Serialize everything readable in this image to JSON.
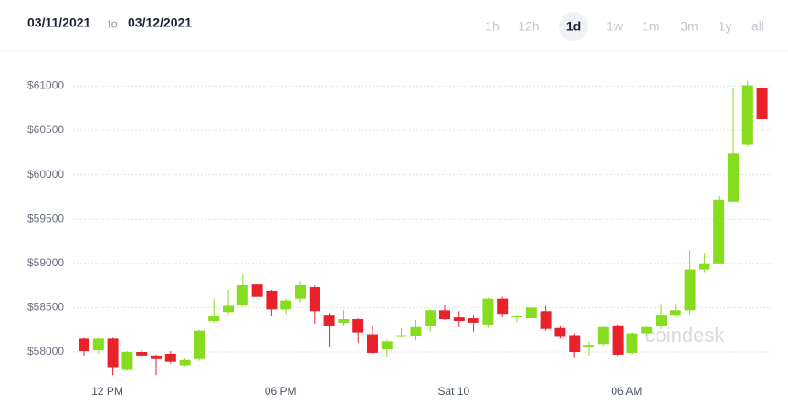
{
  "header": {
    "from": "03/11/2021",
    "separator": "to",
    "to": "03/12/2021"
  },
  "ranges": [
    "1h",
    "12h",
    "1d",
    "1w",
    "1m",
    "3m",
    "1y",
    "all"
  ],
  "selected_range": 2,
  "chart_data": {
    "type": "candlestick",
    "watermark": "coindesk",
    "categories": [
      null,
      null,
      "12 PM",
      null,
      null,
      null,
      null,
      null,
      null,
      null,
      null,
      null,
      null,
      null,
      "06 PM",
      null,
      null,
      null,
      null,
      null,
      null,
      null,
      null,
      null,
      null,
      null,
      "Sat 10",
      null,
      null,
      null,
      null,
      null,
      null,
      null,
      null,
      null,
      null,
      null,
      "06 AM",
      null,
      null,
      null,
      null,
      null,
      null,
      null,
      null,
      null
    ],
    "open": [
      58150,
      58020,
      58150,
      57800,
      58000,
      57960,
      57980,
      57850,
      57920,
      58350,
      58450,
      58530,
      58770,
      58690,
      58480,
      58600,
      58730,
      58420,
      58330,
      58370,
      58200,
      58030,
      58170,
      58180,
      58290,
      58470,
      58390,
      58380,
      58310,
      58600,
      58390,
      58380,
      58460,
      58270,
      58190,
      58050,
      58090,
      58300,
      57990,
      58210,
      58290,
      58420,
      58470,
      58930,
      59000,
      59700,
      60340,
      60980
    ],
    "high": [
      58160,
      58160,
      58160,
      58010,
      58030,
      57970,
      58010,
      57930,
      58250,
      58600,
      58700,
      58880,
      58780,
      58700,
      58600,
      58800,
      58750,
      58440,
      58470,
      58380,
      58290,
      58130,
      58270,
      58360,
      58480,
      58530,
      58460,
      58420,
      58610,
      58620,
      58420,
      58520,
      58520,
      58290,
      58210,
      58120,
      58300,
      58310,
      58220,
      58300,
      58540,
      58540,
      59150,
      59120,
      59760,
      60980,
      61060,
      61000
    ],
    "low": [
      57960,
      57980,
      57740,
      57790,
      57930,
      57740,
      57870,
      57840,
      57900,
      58330,
      58420,
      58510,
      58440,
      58400,
      58430,
      58560,
      58320,
      58060,
      58290,
      58100,
      57980,
      57950,
      58160,
      58130,
      58230,
      58360,
      58280,
      58230,
      58270,
      58390,
      58330,
      58350,
      58240,
      58150,
      57930,
      57960,
      58070,
      57960,
      57980,
      58170,
      58260,
      58400,
      58420,
      58900,
      58990,
      59690,
      60320,
      60480
    ],
    "close": [
      58010,
      58150,
      57820,
      58000,
      57960,
      57920,
      57890,
      57910,
      58240,
      58410,
      58520,
      58760,
      58620,
      58480,
      58580,
      58760,
      58460,
      58290,
      58370,
      58220,
      57990,
      58120,
      58190,
      58280,
      58470,
      58370,
      58350,
      58330,
      58600,
      58430,
      58410,
      58500,
      58260,
      58170,
      58000,
      58080,
      58280,
      57970,
      58210,
      58280,
      58420,
      58470,
      58930,
      59000,
      59720,
      60240,
      61010,
      60630
    ],
    "up_color": "#86dc1f",
    "down_color": "#e8212b",
    "ylim": [
      57650,
      61200
    ],
    "yticks": [
      {
        "value": 58000,
        "label": "$58000"
      },
      {
        "value": 58500,
        "label": "$58500"
      },
      {
        "value": 59000,
        "label": "$59000"
      },
      {
        "value": 59500,
        "label": "$59500"
      },
      {
        "value": 60000,
        "label": "$60000"
      },
      {
        "value": 60500,
        "label": "$60500"
      },
      {
        "value": 61000,
        "label": "$61000"
      }
    ],
    "grid": true
  }
}
